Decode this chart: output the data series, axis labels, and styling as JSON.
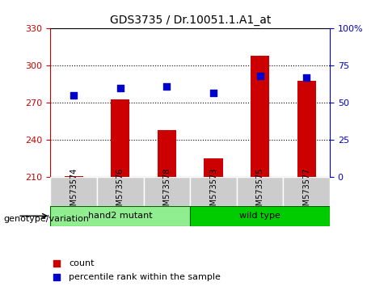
{
  "title": "GDS3735 / Dr.10051.1.A1_at",
  "samples": [
    "GSM573574",
    "GSM573576",
    "GSM573578",
    "GSM573573",
    "GSM573575",
    "GSM573577"
  ],
  "counts": [
    211,
    273,
    248,
    225,
    308,
    288
  ],
  "percentile_ranks": [
    55,
    60,
    61,
    57,
    68,
    67
  ],
  "groups": [
    {
      "label": "hand2 mutant",
      "indices": [
        0,
        1,
        2
      ],
      "color": "#90EE90"
    },
    {
      "label": "wild type",
      "indices": [
        3,
        4,
        5
      ],
      "color": "#00CC00"
    }
  ],
  "ylim_left": [
    210,
    330
  ],
  "yticks_left": [
    210,
    240,
    270,
    300,
    330
  ],
  "ylim_right": [
    0,
    100
  ],
  "yticks_right": [
    0,
    25,
    50,
    75,
    100
  ],
  "bar_color": "#CC0000",
  "dot_color": "#0000CC",
  "bar_width": 0.4,
  "bar_base": 210,
  "dot_size": 40,
  "xlabel_color": "black",
  "left_axis_color": "#CC0000",
  "right_axis_color": "#0000CC",
  "grid_color": "black",
  "grid_style": "dotted",
  "bg_plot": "white",
  "bg_xtick": "#CCCCCC",
  "genotype_label": "genotype/variation"
}
